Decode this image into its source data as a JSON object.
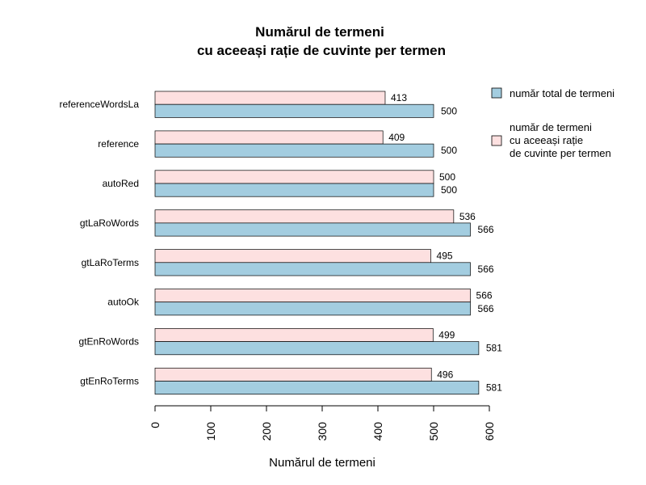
{
  "chart_data": {
    "type": "bar",
    "orientation": "horizontal",
    "title_line1": "Numărul de termeni",
    "title_line2": "cu aceeași rație de cuvinte per termen",
    "xlabel": "Numărul de termeni",
    "ylabel": "",
    "xlim": [
      0,
      600
    ],
    "ticks": [
      "0",
      "100",
      "200",
      "300",
      "400",
      "500",
      "600"
    ],
    "tick_values": [
      0,
      100,
      200,
      300,
      400,
      500,
      600
    ],
    "grid": false,
    "legend_position": "top-right",
    "categories": [
      "referenceWordsLa",
      "reference",
      "autoRed",
      "gtLaRoWords",
      "gtLaRoTerms",
      "autoOk",
      "gtEnRoWords",
      "gtEnRoTerms"
    ],
    "series": [
      {
        "name_lines": [
          "număr total de termeni"
        ],
        "color": "#a3cde0",
        "values": [
          500,
          500,
          500,
          566,
          566,
          566,
          581,
          581
        ]
      },
      {
        "name_lines": [
          "număr de termeni",
          "cu aceeași rație",
          "de cuvinte per termen"
        ],
        "color": "#fde0e0",
        "values": [
          413,
          409,
          500,
          536,
          495,
          566,
          499,
          496
        ]
      }
    ]
  }
}
